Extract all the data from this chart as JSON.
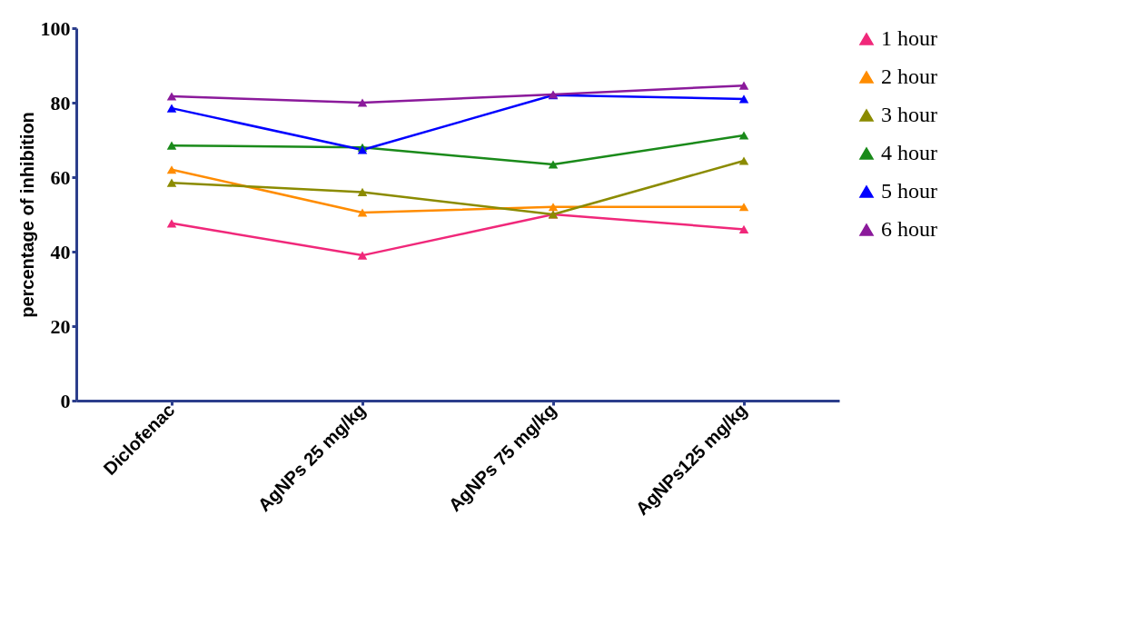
{
  "chart_data": {
    "type": "line",
    "ylabel": "percentage of inhibition",
    "categories": [
      "Diclofenac",
      "AgNPs  25 mg/kg",
      "AgNPs 75 mg/kg",
      "AgNPs125 mg/kg"
    ],
    "series": [
      {
        "name": "1 hour",
        "color": "#f0287a",
        "values": [
          47.6,
          39,
          50,
          46
        ]
      },
      {
        "name": "2 hour",
        "color": "#ff8c00",
        "values": [
          62,
          50.5,
          52,
          52
        ]
      },
      {
        "name": "3 hour",
        "color": "#8b8b00",
        "values": [
          58.5,
          56,
          50,
          64.4
        ]
      },
      {
        "name": "4 hour",
        "color": "#1a8a1a",
        "values": [
          68.5,
          68,
          63.4,
          71.2
        ]
      },
      {
        "name": "5 hour",
        "color": "#0000ff",
        "values": [
          78.5,
          67.3,
          82,
          81
        ]
      },
      {
        "name": "6 hour",
        "color": "#8b1a9b",
        "values": [
          81.7,
          80,
          82.2,
          84.6
        ]
      }
    ],
    "ylim": [
      0,
      100
    ],
    "yticks": [
      0,
      20,
      40,
      60,
      80,
      100
    ],
    "grid": false,
    "legend": "right",
    "marker": "triangle",
    "line_style": "solid"
  }
}
